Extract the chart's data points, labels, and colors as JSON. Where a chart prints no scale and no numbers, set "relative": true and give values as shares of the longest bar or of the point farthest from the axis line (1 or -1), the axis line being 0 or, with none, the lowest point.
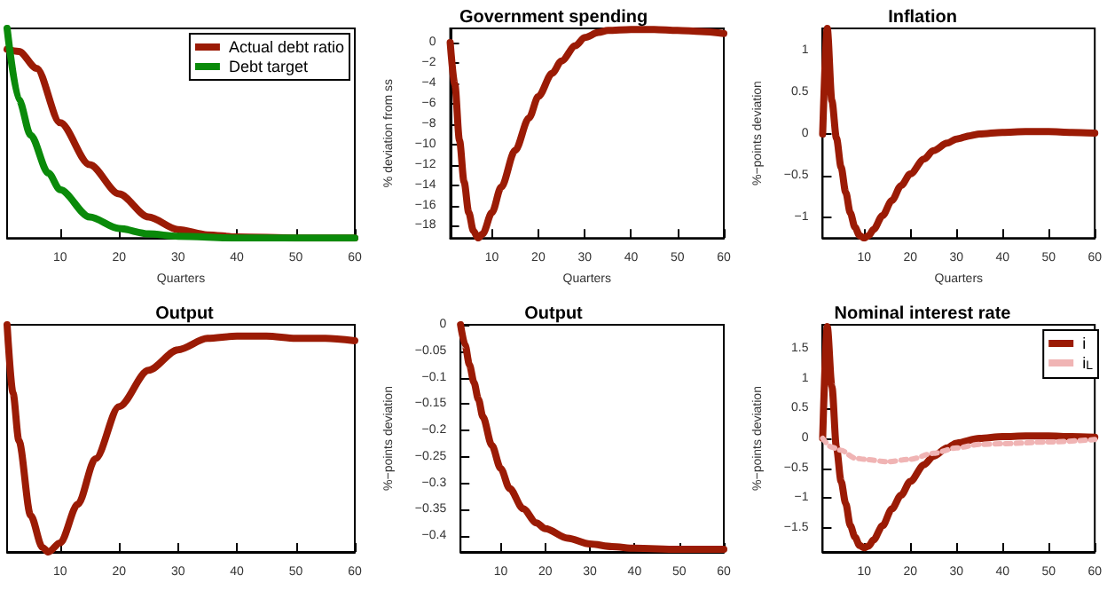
{
  "chart_data": [
    {
      "type": "line",
      "xlabel": "Quarters",
      "relative": true,
      "legend": "top right",
      "xlim": [
        1,
        60
      ],
      "xticks": [
        10,
        20,
        30,
        40,
        50,
        60
      ],
      "series": [
        {
          "name": "Actual debt ratio",
          "color": "#9b1b05",
          "x": [
            1,
            3,
            6,
            10,
            15,
            20,
            25,
            30,
            35,
            40,
            50,
            60
          ],
          "values": [
            0.9,
            0.89,
            0.81,
            0.55,
            0.35,
            0.21,
            0.1,
            0.04,
            0.015,
            0.005,
            0,
            0
          ]
        },
        {
          "name": "Debt target",
          "color": "#0a8a0a",
          "x": [
            1,
            3,
            5,
            8,
            10,
            15,
            20,
            25,
            30,
            40,
            50,
            60
          ],
          "values": [
            1,
            0.66,
            0.49,
            0.31,
            0.23,
            0.1,
            0.045,
            0.02,
            0.008,
            0,
            0,
            0
          ]
        }
      ]
    },
    {
      "type": "line",
      "title": "Government spending",
      "xlabel": "Quarters",
      "ylabel": "% deviation from ss",
      "xlim": [
        1,
        60
      ],
      "xticks": [
        10,
        20,
        30,
        40,
        50,
        60
      ],
      "ylim": [
        -19.2,
        1.4
      ],
      "yticks": [
        -18,
        -16,
        -14,
        -12,
        -10,
        -8,
        -6,
        -4,
        -2,
        0
      ],
      "x": [
        1,
        2,
        3,
        4,
        5,
        6,
        7,
        8,
        10,
        12,
        15,
        18,
        20,
        23,
        25,
        28,
        30,
        33,
        35,
        40,
        45,
        50,
        55,
        60
      ],
      "series": [
        {
          "color": "#9b1b05",
          "values": [
            0,
            -4.1,
            -9.6,
            -13.7,
            -16.7,
            -18.5,
            -19.2,
            -18.8,
            -16.7,
            -14.2,
            -10.6,
            -7.4,
            -5.3,
            -3.0,
            -1.8,
            -0.3,
            0.5,
            1.0,
            1.2,
            1.3,
            1.3,
            1.2,
            1.1,
            0.9
          ]
        }
      ]
    },
    {
      "type": "line",
      "title": "Inflation",
      "xlabel": "Quarters",
      "ylabel": "%−points deviation",
      "xlim": [
        1,
        60
      ],
      "xticks": [
        10,
        20,
        30,
        40,
        50,
        60
      ],
      "ylim": [
        -1.25,
        1.27
      ],
      "yticks": [
        -1,
        -0.5,
        0,
        0.5,
        1
      ],
      "x": [
        1,
        2,
        3,
        4,
        5,
        6,
        7,
        8,
        9,
        10,
        11,
        12,
        14,
        16,
        18,
        20,
        23,
        25,
        28,
        30,
        33,
        35,
        40,
        45,
        50,
        55,
        60
      ],
      "series": [
        {
          "color": "#9b1b05",
          "values": [
            0,
            1.27,
            0.4,
            -0.05,
            -0.4,
            -0.7,
            -0.95,
            -1.12,
            -1.22,
            -1.25,
            -1.22,
            -1.15,
            -0.98,
            -0.8,
            -0.62,
            -0.48,
            -0.3,
            -0.2,
            -0.11,
            -0.06,
            -0.02,
            0,
            0.02,
            0.03,
            0.03,
            0.02,
            0.01
          ]
        }
      ]
    },
    {
      "type": "line",
      "title": "Output",
      "relative": true,
      "xlim": [
        1,
        60
      ],
      "xticks": [
        10,
        20,
        30,
        40,
        50,
        60
      ],
      "x": [
        1,
        2,
        3,
        5,
        7,
        8,
        10,
        13,
        16,
        20,
        25,
        30,
        35,
        40,
        45,
        50,
        55,
        60
      ],
      "series": [
        {
          "color": "#9b1b05",
          "values": [
            1,
            0.7,
            0.49,
            0.16,
            0.02,
            0,
            0.04,
            0.21,
            0.41,
            0.64,
            0.8,
            0.89,
            0.94,
            0.95,
            0.95,
            0.94,
            0.94,
            0.93
          ]
        }
      ]
    },
    {
      "type": "line",
      "title": "Output",
      "ylabel": "%−points deviation",
      "xlim": [
        1,
        60
      ],
      "xticks": [
        10,
        20,
        30,
        40,
        50,
        60
      ],
      "ylim": [
        -0.43,
        0
      ],
      "yticks": [
        -0.4,
        -0.35,
        -0.3,
        -0.25,
        -0.2,
        -0.15,
        -0.1,
        -0.05,
        0
      ],
      "x": [
        1,
        2,
        3,
        4,
        5,
        6,
        8,
        10,
        12,
        15,
        18,
        20,
        25,
        30,
        35,
        40,
        50,
        60
      ],
      "series": [
        {
          "color": "#9b1b05",
          "values": [
            0,
            -0.038,
            -0.076,
            -0.109,
            -0.141,
            -0.174,
            -0.228,
            -0.272,
            -0.31,
            -0.348,
            -0.375,
            -0.386,
            -0.404,
            -0.415,
            -0.42,
            -0.423,
            -0.425,
            -0.425
          ]
        }
      ]
    },
    {
      "type": "line",
      "title": "Nominal interest rate",
      "ylabel": "%−points deviation",
      "legend": "top right",
      "xlim": [
        1,
        60
      ],
      "xticks": [
        10,
        20,
        30,
        40,
        50,
        60
      ],
      "ylim": [
        -1.9,
        1.9
      ],
      "yticks": [
        -1.5,
        -1,
        -0.5,
        0,
        0.5,
        1,
        1.5
      ],
      "series": [
        {
          "name": "i",
          "color": "#9b1b05",
          "x": [
            1,
            2,
            3,
            4,
            5,
            6,
            7,
            8,
            9,
            10,
            11,
            12,
            14,
            16,
            18,
            20,
            23,
            25,
            28,
            30,
            35,
            40,
            45,
            50,
            55,
            60
          ],
          "values": [
            0,
            1.87,
            0.87,
            -0.16,
            -0.72,
            -1.09,
            -1.46,
            -1.65,
            -1.79,
            -1.83,
            -1.8,
            -1.7,
            -1.46,
            -1.18,
            -0.95,
            -0.72,
            -0.44,
            -0.3,
            -0.16,
            -0.08,
            0,
            0.03,
            0.04,
            0.04,
            0.03,
            0.02
          ]
        },
        {
          "name": "i$_{L}$",
          "color": "#f0b4b4",
          "line_style": "dotted",
          "x": [
            1,
            3,
            5,
            8,
            10,
            15,
            20,
            25,
            30,
            35,
            40,
            50,
            60
          ],
          "values": [
            0,
            -0.15,
            -0.2,
            -0.33,
            -0.35,
            -0.39,
            -0.35,
            -0.25,
            -0.16,
            -0.1,
            -0.09,
            -0.06,
            -0.02
          ]
        }
      ]
    }
  ]
}
